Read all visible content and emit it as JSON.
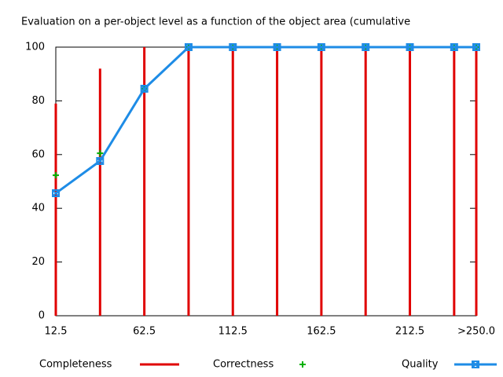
{
  "chart_data": {
    "type": "line",
    "title": "Evaluation on a per-object level as a function of the object area (cumulative",
    "x": [
      12.5,
      37.5,
      62.5,
      87.5,
      112.5,
      137.5,
      162.5,
      187.5,
      212.5,
      237.5,
      250
    ],
    "xlim": [
      12.5,
      250
    ],
    "xticks": [
      12.5,
      62.5,
      112.5,
      162.5,
      212.5,
      {
        "value": 250,
        "label": ">250.0"
      }
    ],
    "ylim": [
      0,
      100
    ],
    "yticks": [
      0,
      20,
      40,
      60,
      80,
      100
    ],
    "grid": false,
    "legend": "bottom",
    "series": [
      {
        "name": "Completeness",
        "color": "#e00000",
        "style": "impulses",
        "values": [
          79,
          92,
          100,
          100,
          100,
          100,
          100,
          100,
          100,
          100,
          100
        ]
      },
      {
        "name": "Correctness",
        "color": "#00b000",
        "style": "points",
        "values": [
          52.3,
          60.5,
          84.5,
          100,
          100,
          100,
          100,
          100,
          100,
          100,
          100
        ]
      },
      {
        "name": "Quality",
        "color": "#1e8ce6",
        "style": "linespoints",
        "values": [
          45.6,
          57.6,
          84.5,
          100,
          100,
          100,
          100,
          100,
          100,
          100,
          100
        ]
      }
    ]
  }
}
